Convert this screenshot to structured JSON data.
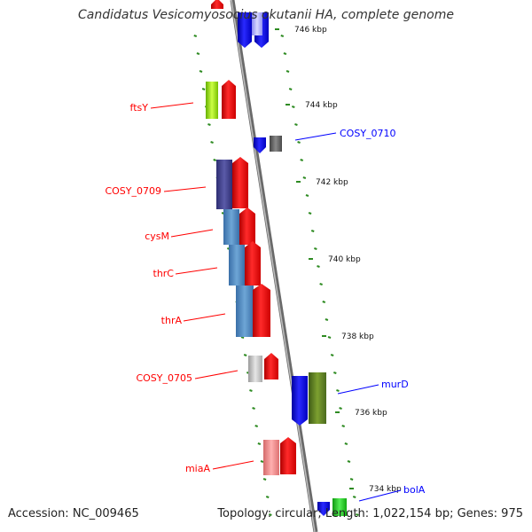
{
  "title": "Candidatus Vesicomyosocius okutanii HA, complete genome",
  "footer": {
    "accession": "Accession: NC_009465",
    "summary": "Topology: circular; Length: 1,022,154 bp; Genes: 975"
  },
  "colors": {
    "backbone": "#888888",
    "forward_gene": "#ff0000",
    "reverse_gene": "#0000ff",
    "dotted_guide": "#2e8b22"
  },
  "ticks": [
    {
      "label": "746 kbp"
    },
    {
      "label": "744 kbp"
    },
    {
      "label": "742 kbp"
    },
    {
      "label": "740 kbp"
    },
    {
      "label": "738 kbp"
    },
    {
      "label": "736 kbp"
    },
    {
      "label": "734 kbp"
    }
  ],
  "genes": [
    {
      "label": "ftsY",
      "strand": "forward"
    },
    {
      "label": "COSY_0709",
      "strand": "forward"
    },
    {
      "label": "cysM",
      "strand": "forward"
    },
    {
      "label": "thrC",
      "strand": "forward"
    },
    {
      "label": "thrA",
      "strand": "forward"
    },
    {
      "label": "COSY_0705",
      "strand": "forward"
    },
    {
      "label": "miaA",
      "strand": "forward"
    },
    {
      "label": "COSY_0710",
      "strand": "reverse"
    },
    {
      "label": "murD",
      "strand": "reverse"
    },
    {
      "label": "bolA",
      "strand": "reverse"
    }
  ]
}
